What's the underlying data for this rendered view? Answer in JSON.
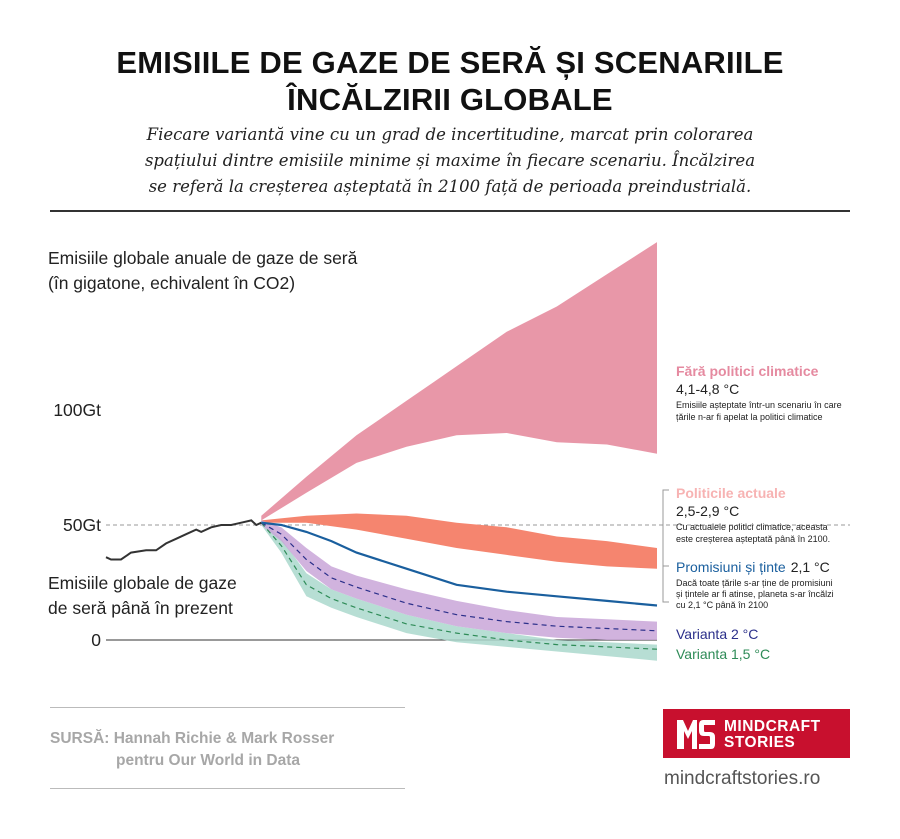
{
  "header": {
    "title_line1": "EMISIILE DE GAZE DE SERĂ ȘI SCENARIILE",
    "title_line2": "ÎNCĂLZIRII GLOBALE",
    "subtitle_line1": "Fiecare variantă vine cu un grad de incertitudine, marcat prin colorarea",
    "subtitle_line2": "spațiului dintre emisiile minime și maxime în fiecare scenariu. Încălzirea",
    "subtitle_line3": "se referă la creșterea așteptată în 2100 față de perioada preindustrială."
  },
  "chart_data": {
    "type": "area",
    "ylabel_line1": "Emisiile globale anuale de gaze de seră",
    "ylabel_line2": "(în gigatone, echivalent în CO2)",
    "history_label_line1": "Emisiile globale de gaze",
    "history_label_line2": "de seră până în prezent",
    "y_ticks": [
      {
        "value": 100,
        "label": "100Gt"
      },
      {
        "value": 50,
        "label": "50Gt"
      },
      {
        "value": 0,
        "label": "0"
      }
    ],
    "ylim": [
      -10,
      174
    ],
    "xlim": [
      1990,
      2100
    ],
    "history": {
      "x": [
        1990,
        1991,
        1993,
        1995,
        1998,
        2000,
        2002,
        2004,
        2006,
        2008,
        2009,
        2011,
        2013,
        2015,
        2017,
        2019,
        2020,
        2021
      ],
      "y": [
        36,
        35,
        35,
        38,
        39,
        39,
        42,
        44,
        46,
        48,
        47,
        49,
        50,
        50,
        51,
        52,
        50,
        51
      ]
    },
    "scenarios": [
      {
        "name": "Fără politici climatice",
        "warming": "4,1-4,8 °C",
        "note_line1": "Emisiile așteptate într-un scenariu în care",
        "note_line2": "țările n-ar fi apelat la politici climatice",
        "color": "#e897a8",
        "label_color": "#e58aa0",
        "x": [
          2021,
          2030,
          2040,
          2050,
          2060,
          2070,
          2080,
          2090,
          2100
        ],
        "upper": [
          54,
          71,
          89,
          104,
          119,
          134,
          145,
          159,
          173
        ],
        "lower": [
          52,
          64,
          77,
          84,
          89,
          90,
          86,
          85,
          81
        ]
      },
      {
        "name": "Politicile actuale",
        "warming": "2,5-2,9 °C",
        "note_line1": "Cu actualele politici climatice, aceasta",
        "note_line2": "este creșterea așteptată până în 2100.",
        "color": "#f5856f",
        "label_color": "#f7b3b3",
        "x": [
          2021,
          2030,
          2040,
          2050,
          2060,
          2070,
          2080,
          2090,
          2100
        ],
        "upper": [
          52,
          54,
          55,
          54,
          51,
          49,
          45,
          43,
          40
        ],
        "lower": [
          51,
          51,
          48,
          44,
          40,
          37,
          34,
          32,
          31
        ]
      },
      {
        "name": "Promisiuni și ținte",
        "warming": "2,1 °C",
        "note_line1": "Dacă toate țările s-ar ține de promisiuni",
        "note_line2": "și țintele ar fi atinse, planeta s-ar încălzi",
        "note_line3": "cu 2,1 °C până în 2100",
        "color": "#1a5f9e",
        "label_color": "#1a5f9e",
        "x": [
          2021,
          2025,
          2030,
          2035,
          2040,
          2050,
          2060,
          2070,
          2080,
          2090,
          2100
        ],
        "y": [
          51,
          50,
          47,
          43,
          38,
          31,
          24,
          21,
          19,
          17,
          15
        ]
      },
      {
        "name": "Varianta 2 °C",
        "color": "#c9a6d8",
        "label_color": "#2b2f8a",
        "x": [
          2021,
          2025,
          2030,
          2035,
          2040,
          2050,
          2060,
          2070,
          2080,
          2090,
          2100
        ],
        "upper": [
          52,
          49,
          40,
          32,
          28,
          22,
          17,
          13,
          10,
          9,
          8
        ],
        "median": [
          51,
          46,
          35,
          27,
          23,
          16,
          11,
          8,
          6,
          5,
          4
        ],
        "lower": [
          50,
          43,
          30,
          22,
          18,
          11,
          6,
          3,
          1,
          0,
          0
        ]
      },
      {
        "name": "Varianta 1,5 °C",
        "color": "#aad8cd",
        "label_color": "#2e8b57",
        "x": [
          2021,
          2025,
          2030,
          2035,
          2040,
          2050,
          2060,
          2070,
          2080,
          2090,
          2100
        ],
        "upper": [
          52,
          44,
          29,
          22,
          18,
          11,
          6,
          3,
          0,
          -1,
          -2
        ],
        "median": [
          51,
          41,
          24,
          18,
          14,
          7,
          3,
          0,
          -2,
          -3,
          -4
        ],
        "lower": [
          50,
          38,
          19,
          14,
          10,
          3,
          -1,
          -3,
          -5,
          -7,
          -9
        ]
      }
    ]
  },
  "footer": {
    "source_line1": "SURSĂ: Hannah Richie & Mark Rosser",
    "source_line2": "pentru Our World in Data",
    "logo_line1": "MINDCRAFT",
    "logo_line2": "STORIES",
    "website": "mindcraftstories.ro"
  },
  "colors": {
    "grid_dashed": "#999999",
    "history_line": "#333333",
    "logo_bg": "#c8102e"
  }
}
